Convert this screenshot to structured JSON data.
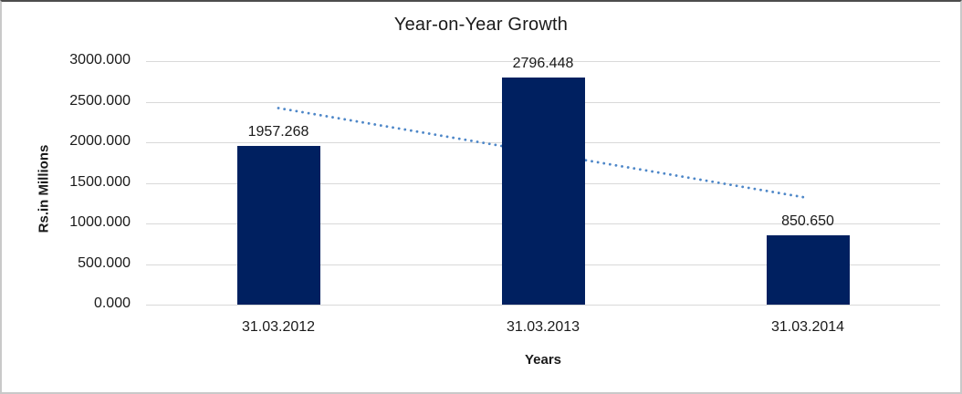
{
  "chart_data": {
    "type": "bar",
    "title": "Year-on-Year Growth",
    "xlabel": "Years",
    "ylabel": "Rs.in Millions",
    "categories": [
      "31.03.2012",
      "31.03.2013",
      "31.03.2014"
    ],
    "values": [
      1957.268,
      2796.448,
      850.65
    ],
    "data_labels": [
      "1957.268",
      "2796.448",
      "850.650"
    ],
    "ylim": [
      0,
      3000
    ],
    "ytick_values": [
      0,
      500,
      1000,
      1500,
      2000,
      2500,
      3000
    ],
    "ytick_labels": [
      "0.000",
      "500.000",
      "1000.000",
      "1500.000",
      "2000.000",
      "2500.000",
      "3000.000"
    ],
    "grid": true,
    "legend": false,
    "colors": {
      "bar": "#002060",
      "gridline": "#d9d9d9",
      "trendline": "#4e87c8",
      "text": "#1a1a1a"
    },
    "trendline": {
      "type": "linear",
      "style": "dotted",
      "start_value": 2421.4,
      "end_value": 1314.8
    }
  }
}
